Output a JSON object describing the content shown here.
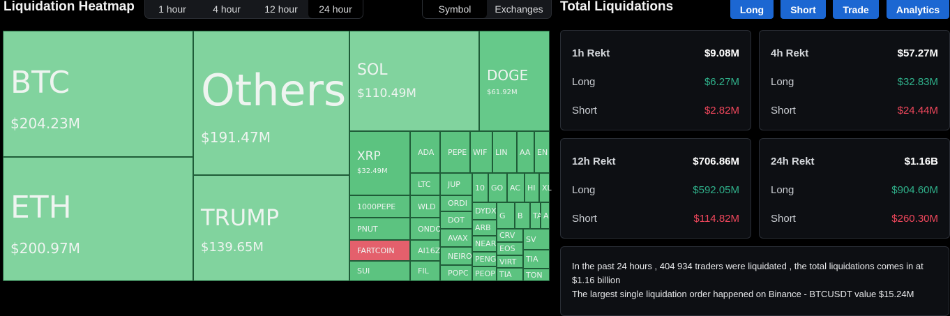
{
  "header": {
    "title": "Liquidation Heatmap",
    "time_tabs": [
      {
        "label": "1 hour",
        "active": false
      },
      {
        "label": "4 hour",
        "active": false
      },
      {
        "label": "12 hour",
        "active": false
      },
      {
        "label": "24 hour",
        "active": true
      }
    ],
    "group_tabs": [
      {
        "label": "Symbol",
        "active": true
      },
      {
        "label": "Exchanges",
        "active": false
      }
    ]
  },
  "panel": {
    "title": "Total Liquidations",
    "buttons": [
      "Long",
      "Short",
      "Trade",
      "Analytics"
    ],
    "cards": [
      {
        "title": "1h Rekt",
        "total": "$9.08M",
        "long_label": "Long",
        "long": "$6.27M",
        "short_label": "Short",
        "short": "$2.82M"
      },
      {
        "title": "4h Rekt",
        "total": "$57.27M",
        "long_label": "Long",
        "long": "$32.83M",
        "short_label": "Short",
        "short": "$24.44M"
      },
      {
        "title": "12h Rekt",
        "total": "$706.86M",
        "long_label": "Long",
        "long": "$592.05M",
        "short_label": "Short",
        "short": "$114.82M"
      },
      {
        "title": "24h Rekt",
        "total": "$1.16B",
        "long_label": "Long",
        "long": "$904.60M",
        "short_label": "Short",
        "short": "$260.30M"
      }
    ],
    "notes": [
      "In the past 24 hours , 404 934 traders were liquidated , the total liquidations comes in at $1.16 billion",
      "The largest single liquidation order happened on Binance - BTCUSDT value $15.24M"
    ]
  },
  "heatmap": {
    "tiles": [
      {
        "symbol": "BTC",
        "value": "$204.23M",
        "color": "#81d39e"
      },
      {
        "symbol": "ETH",
        "value": "$200.97M",
        "color": "#81d39e"
      },
      {
        "symbol": "Others",
        "value": "$191.47M",
        "color": "#81d39e"
      },
      {
        "symbol": "TRUMP",
        "value": "$139.65M",
        "color": "#81d39e"
      },
      {
        "symbol": "SOL",
        "value": "$110.49M",
        "color": "#81d39e"
      },
      {
        "symbol": "DOGE",
        "value": "$61.92M",
        "color": "#66c98a"
      },
      {
        "symbol": "XRP",
        "value": "$32.49M",
        "color": "#5cc380"
      },
      {
        "symbol": "1000PEPE",
        "color": "#5cc380"
      },
      {
        "symbol": "PNUT",
        "color": "#5cc380"
      },
      {
        "symbol": "FARTCOIN",
        "color": "#e4606c"
      },
      {
        "symbol": "SUI",
        "color": "#5cc380"
      },
      {
        "symbol": "ADA",
        "color": "#5cc380"
      },
      {
        "symbol": "PEPE",
        "color": "#5cc380"
      },
      {
        "symbol": "WIF",
        "color": "#5cc380"
      },
      {
        "symbol": "LIN",
        "color": "#5cc380"
      },
      {
        "symbol": "AA",
        "color": "#5cc380"
      },
      {
        "symbol": "EN",
        "color": "#5cc380"
      },
      {
        "symbol": "LTC",
        "color": "#5cc380"
      },
      {
        "symbol": "WLD",
        "color": "#5cc380"
      },
      {
        "symbol": "ONDO",
        "color": "#5cc380"
      },
      {
        "symbol": "AI16Z",
        "color": "#5cc380"
      },
      {
        "symbol": "FIL",
        "color": "#5cc380"
      },
      {
        "symbol": "JUP",
        "color": "#5cc380"
      },
      {
        "symbol": "ORDI",
        "color": "#5cc380"
      },
      {
        "symbol": "DOT",
        "color": "#5cc380"
      },
      {
        "symbol": "AVAX",
        "color": "#5cc380"
      },
      {
        "symbol": "NEIRO",
        "color": "#5cc380"
      },
      {
        "symbol": "POPC",
        "color": "#5cc380"
      },
      {
        "symbol": "10",
        "color": "#5cc380"
      },
      {
        "symbol": "GO",
        "color": "#5cc380"
      },
      {
        "symbol": "AC",
        "color": "#5cc380"
      },
      {
        "symbol": "HI",
        "color": "#5cc380"
      },
      {
        "symbol": "XL",
        "color": "#5cc380"
      },
      {
        "symbol": "DYDX",
        "color": "#5cc380"
      },
      {
        "symbol": "ARB",
        "color": "#5cc380"
      },
      {
        "symbol": "NEAR",
        "color": "#5cc380"
      },
      {
        "symbol": "PENG",
        "color": "#5cc380"
      },
      {
        "symbol": "PEOP",
        "color": "#5cc380"
      },
      {
        "symbol": "G",
        "color": "#5cc380"
      },
      {
        "symbol": "B",
        "color": "#5cc380"
      },
      {
        "symbol": "TA",
        "color": "#5cc380"
      },
      {
        "symbol": "A",
        "color": "#5cc380"
      },
      {
        "symbol": "CRV",
        "color": "#5cc380"
      },
      {
        "symbol": "EOS",
        "color": "#5cc380"
      },
      {
        "symbol": "VIRT",
        "color": "#5cc380"
      },
      {
        "symbol": "TIA",
        "color": "#5cc380"
      },
      {
        "symbol": "SV",
        "color": "#5cc380"
      },
      {
        "symbol": "TIA",
        "color": "#5cc380"
      },
      {
        "symbol": "TON",
        "color": "#5cc380"
      }
    ]
  }
}
